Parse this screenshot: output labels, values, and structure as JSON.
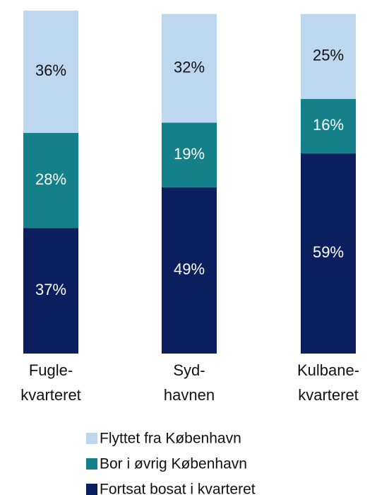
{
  "chart_data": {
    "type": "stacked_bar",
    "categories": [
      "Fugle-\nkvarteret",
      "Syd-\nhavnen",
      "Kulbane-\nkvarteret"
    ],
    "series": [
      {
        "name": "Fortsat bosat i kvarteret",
        "color": "#0b1f5e",
        "values": [
          37,
          49,
          59
        ],
        "value_labels": [
          "37%",
          "49%",
          "59%"
        ]
      },
      {
        "name": "Bor i øvrig København",
        "color": "#13808a",
        "values": [
          28,
          19,
          16
        ],
        "value_labels": [
          "28%",
          "19%",
          "16%"
        ]
      },
      {
        "name": "Flyttet fra København",
        "color": "#bdd7ee",
        "values": [
          36,
          32,
          25
        ],
        "value_labels": [
          "36%",
          "32%",
          "25%"
        ]
      }
    ]
  }
}
